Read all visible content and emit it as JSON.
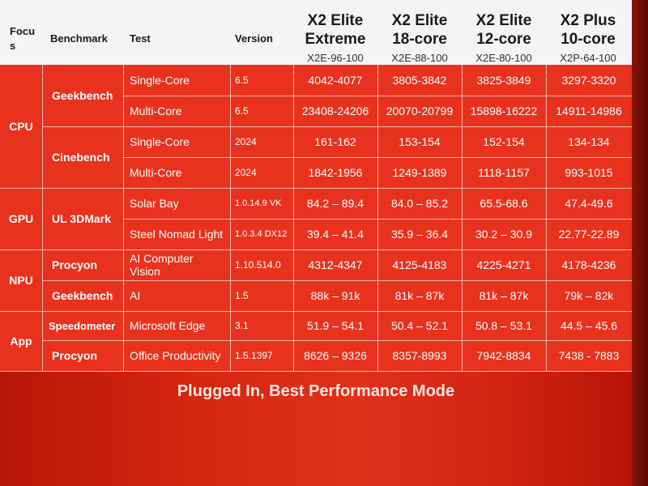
{
  "header": {
    "focus": "Focus",
    "benchmark": "Benchmark",
    "test": "Test",
    "version": "Version",
    "models": [
      {
        "name": "X2 Elite Extreme",
        "sku": "X2E-96-100"
      },
      {
        "name": "X2 Elite 18-core",
        "sku": "X2E-88-100"
      },
      {
        "name": "X2 Elite 12-core",
        "sku": "X2E-80-100"
      },
      {
        "name": "X2 Plus 10-core",
        "sku": "X2P-64-100"
      }
    ]
  },
  "rows": [
    {
      "focus": "CPU",
      "benchmark": "Geekbench",
      "test": "Single-Core",
      "version": "6.5",
      "values": [
        "4042-4077",
        "3805-3842",
        "3825-3849",
        "3297-3320"
      ]
    },
    {
      "focus": "CPU",
      "benchmark": "Geekbench",
      "test": "Multi-Core",
      "version": "6.5",
      "values": [
        "23408-24206",
        "20070-20799",
        "15898-16222",
        "14911-14986"
      ]
    },
    {
      "focus": "CPU",
      "benchmark": "Cinebench",
      "test": "Single-Core",
      "version": "2024",
      "values": [
        "161-162",
        "153-154",
        "152-154",
        "134-134"
      ]
    },
    {
      "focus": "CPU",
      "benchmark": "Cinebench",
      "test": "Multi-Core",
      "version": "2024",
      "values": [
        "1842-1956",
        "1249-1389",
        "1118-1157",
        "993-1015"
      ]
    },
    {
      "focus": "GPU",
      "benchmark": "UL 3DMark",
      "test": "Solar Bay",
      "version": "1.0.14.9 VK",
      "values": [
        "84.2 – 89.4",
        "84.0 – 85.2",
        "65.5-68.6",
        "47.4-49.6"
      ]
    },
    {
      "focus": "GPU",
      "benchmark": "UL 3DMark",
      "test": "Steel Nomad Light",
      "version": "1.0.3.4 DX12",
      "values": [
        "39.4 – 41.4",
        "35.9 – 36.4",
        "30.2 – 30.9",
        "22.77-22.89"
      ]
    },
    {
      "focus": "NPU",
      "benchmark": "Procyon",
      "test": "AI Computer Vision",
      "version": "1.10.514.0",
      "values": [
        "4312-4347",
        "4125-4183",
        "4225-4271",
        "4178-4236"
      ]
    },
    {
      "focus": "NPU",
      "benchmark": "Geekbench",
      "test": "AI",
      "version": "1.5",
      "values": [
        "88k – 91k",
        "81k – 87k",
        "81k – 87k",
        "79k – 82k"
      ]
    },
    {
      "focus": "App",
      "benchmark": "Speedometer",
      "test": "Microsoft Edge",
      "version": "3.1",
      "values": [
        "51.9 – 54.1",
        "50.4 – 52.1",
        "50.8 – 53.1",
        "44.5 – 45.6"
      ]
    },
    {
      "focus": "App",
      "benchmark": "Procyon",
      "test": "Office Productivity",
      "version": "1.5.1397",
      "values": [
        "8626 – 9326",
        "8357-8993",
        "7942-8834",
        "7438 - 7883"
      ]
    }
  ],
  "footer": "Plugged In, Best Performance Mode"
}
